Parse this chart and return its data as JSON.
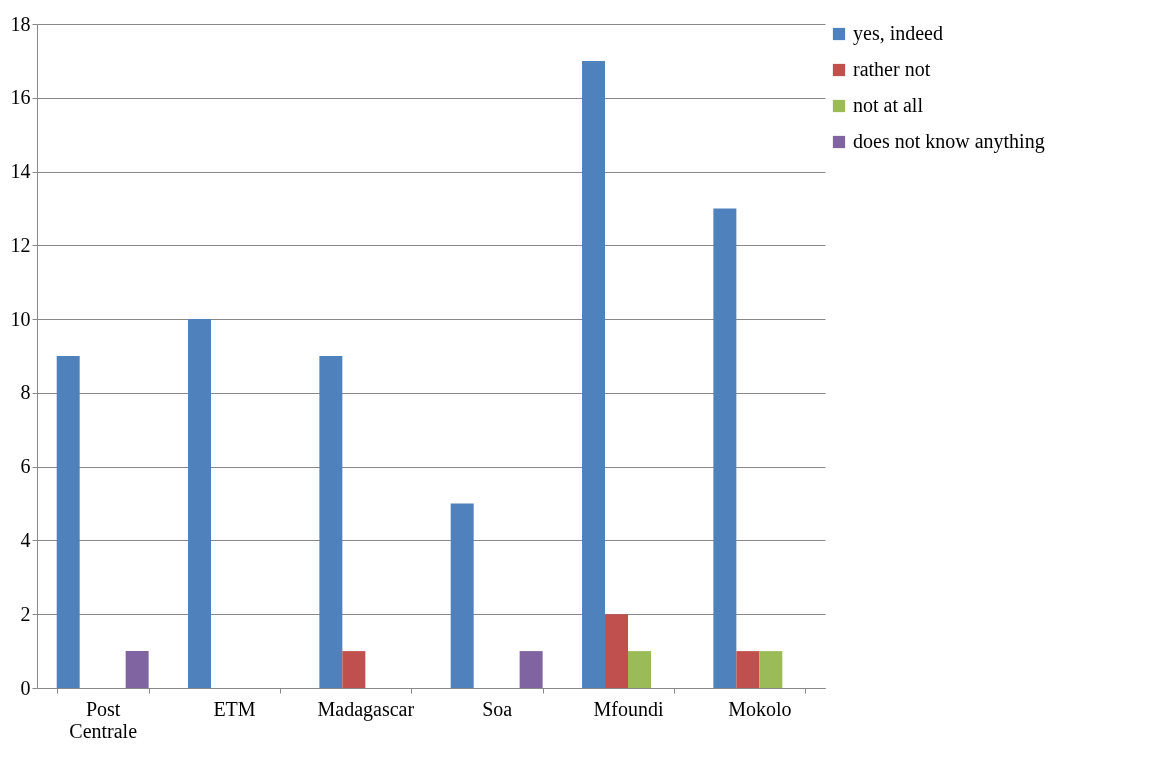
{
  "chart_data": {
    "type": "bar",
    "categories": [
      "Post Centrale",
      "ETM",
      "Madagascar",
      "Soa",
      "Mfoundi",
      "Mokolo"
    ],
    "series": [
      {
        "name": "yes, indeed",
        "color": "#4f81bd",
        "values": [
          9,
          10,
          9,
          5,
          17,
          13
        ]
      },
      {
        "name": "rather not",
        "color": "#c0504d",
        "values": [
          null,
          null,
          1,
          null,
          2,
          1
        ]
      },
      {
        "name": "not at all",
        "color": "#9bbb59",
        "values": [
          null,
          null,
          null,
          null,
          1,
          1
        ]
      },
      {
        "name": "does not know anything",
        "color": "#8064a2",
        "values": [
          1,
          null,
          null,
          1,
          null,
          null
        ]
      }
    ],
    "ylim": [
      0,
      18
    ],
    "yticks": [
      0,
      2,
      4,
      6,
      8,
      10,
      12,
      14,
      16,
      18
    ],
    "grid": "y",
    "legend": "right"
  }
}
